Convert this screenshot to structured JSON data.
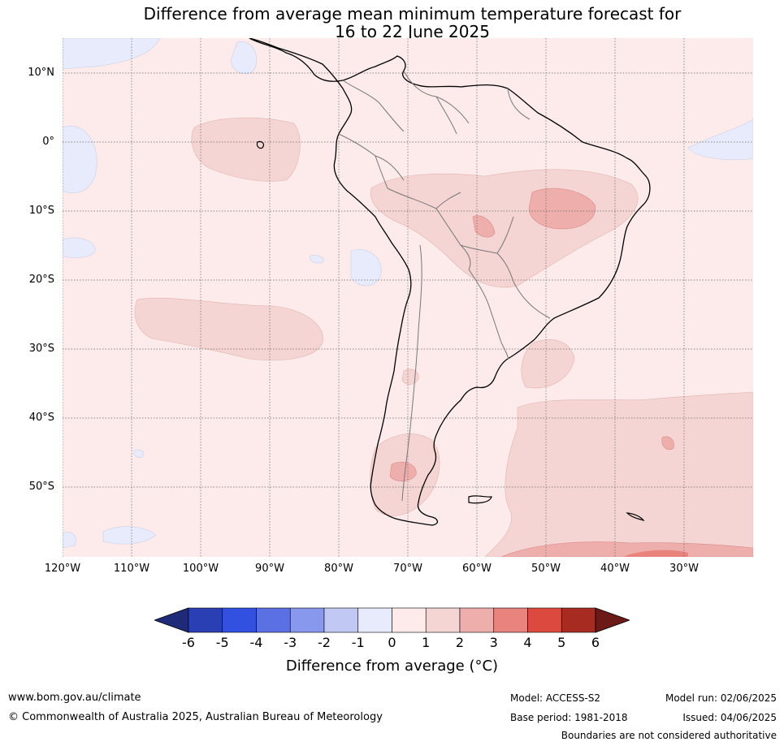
{
  "title_line1": "Difference from average mean minimum temperature forecast for",
  "title_line2": "16 to 22 June 2025",
  "lat_labels": [
    "10°N",
    "0°",
    "10°S",
    "20°S",
    "30°S",
    "40°S",
    "50°S"
  ],
  "lon_labels": [
    "120°W",
    "110°W",
    "100°W",
    "90°W",
    "80°W",
    "70°W",
    "60°W",
    "50°W",
    "40°W",
    "30°W"
  ],
  "colorbar": {
    "ticks": [
      "-6",
      "-5",
      "-4",
      "-3",
      "-2",
      "-1",
      "0",
      "1",
      "2",
      "3",
      "4",
      "5",
      "6"
    ],
    "colors": [
      "#1f2a78",
      "#2a3fb4",
      "#3251e0",
      "#5b70e3",
      "#8898ec",
      "#c0c8f3",
      "#e8ebfb",
      "#fcebea",
      "#f5d5d3",
      "#eeaeab",
      "#e8837d",
      "#dc4a3f",
      "#a82b22",
      "#6b1a18"
    ],
    "label": "Difference from average (°C)"
  },
  "footer": {
    "website": "www.bom.gov.au/climate",
    "copyright": "© Commonwealth of Australia 2025, Australian Bureau of Meteorology",
    "model": "Model: ACCESS-S2",
    "base_period": "Base period: 1981-2018",
    "model_run": "Model run: 02/06/2025",
    "issued": "Issued: 04/06/2025",
    "disclaimer": "Boundaries are not considered authoritative"
  }
}
